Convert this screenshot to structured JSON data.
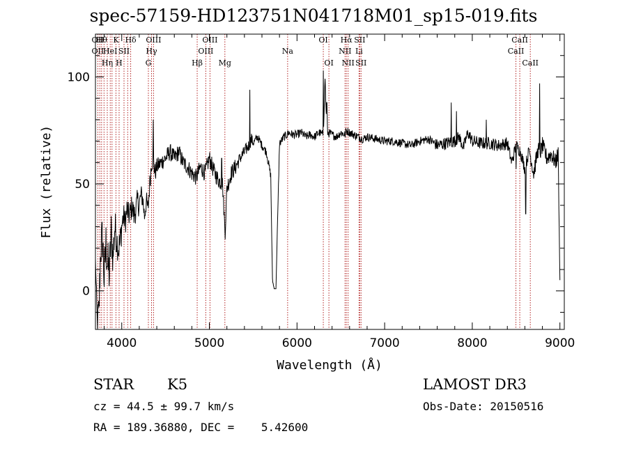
{
  "chart_data": {
    "type": "line",
    "title": "spec-57159-HD123751N041718M01_sp15-019.fits",
    "xlabel": "Wavelength (Å)",
    "ylabel": "Flux (relative)",
    "xlim": [
      3700,
      9050
    ],
    "ylim": [
      -18,
      120
    ],
    "xticks": [
      4000,
      5000,
      6000,
      7000,
      8000,
      9000
    ],
    "xtick_labels": [
      "4000",
      "5000",
      "6000",
      "7000",
      "8000",
      "9000"
    ],
    "yticks": [
      0,
      50,
      100
    ],
    "ytick_labels": [
      "0",
      "50",
      "100"
    ],
    "series": [
      {
        "color": "#000000",
        "x": [
          3700,
          3720,
          3740,
          3760,
          3780,
          3800,
          3820,
          3840,
          3860,
          3880,
          3900,
          3920,
          3940,
          3960,
          3980,
          4000,
          4020,
          4040,
          4060,
          4080,
          4100,
          4120,
          4140,
          4160,
          4180,
          4200,
          4220,
          4240,
          4260,
          4280,
          4300,
          4320,
          4340,
          4360,
          4380,
          4400,
          4450,
          4500,
          4550,
          4600,
          4650,
          4700,
          4750,
          4800,
          4850,
          4900,
          4950,
          5000,
          5050,
          5100,
          5150,
          5180,
          5200,
          5250,
          5300,
          5350,
          5400,
          5450,
          5480,
          5500,
          5550,
          5600,
          5650,
          5700,
          5720,
          5740,
          5760,
          5780,
          5800,
          5820,
          5850,
          5890,
          5900,
          5950,
          6000,
          6050,
          6100,
          6150,
          6200,
          6250,
          6300,
          6320,
          6330,
          6350,
          6400,
          6450,
          6500,
          6550,
          6560,
          6600,
          6650,
          6700,
          6750,
          6800,
          6900,
          7000,
          7100,
          7200,
          7300,
          7400,
          7500,
          7600,
          7700,
          7800,
          7850,
          7900,
          7950,
          8000,
          8100,
          8200,
          8300,
          8400,
          8450,
          8500,
          8550,
          8600,
          8650,
          8700,
          8750,
          8780,
          8800,
          8850,
          8900,
          8950,
          8980,
          9000
        ],
        "y": [
          15,
          -15,
          -10,
          20,
          25,
          5,
          22,
          12,
          8,
          28,
          15,
          30,
          25,
          20,
          22,
          30,
          35,
          32,
          38,
          35,
          37,
          40,
          35,
          38,
          42,
          40,
          45,
          43,
          35,
          42,
          38,
          50,
          60,
          62,
          55,
          58,
          60,
          62,
          65,
          62,
          65,
          60,
          58,
          55,
          53,
          58,
          55,
          62,
          56,
          52,
          50,
          27,
          48,
          55,
          58,
          62,
          65,
          68,
          71,
          69,
          72,
          68,
          65,
          54,
          5,
          1,
          1,
          35,
          69,
          70,
          72,
          73,
          74,
          73,
          73,
          74,
          72,
          73,
          72,
          74,
          73,
          100,
          86,
          74,
          73,
          72,
          74,
          73,
          75,
          74,
          73,
          72,
          71,
          72,
          71,
          70,
          70,
          69,
          68,
          70,
          71,
          68,
          69,
          70,
          72,
          67,
          74,
          70,
          69,
          69,
          68,
          69,
          60,
          68,
          65,
          57,
          66,
          55,
          66,
          65,
          68,
          62,
          64,
          60,
          64,
          5
        ],
        "noise": [
          0,
          8,
          10,
          12,
          12,
          12,
          12,
          12,
          12,
          10,
          10,
          10,
          8,
          8,
          8,
          8,
          6,
          6,
          6,
          6,
          6,
          6,
          6,
          6,
          6,
          6,
          5,
          5,
          5,
          5,
          5,
          5,
          5,
          5,
          5,
          4,
          4,
          4,
          4,
          4,
          4,
          4,
          4,
          4,
          4,
          4,
          4,
          4,
          4,
          4,
          4,
          3,
          4,
          4,
          4,
          3,
          3,
          3,
          3,
          2,
          2,
          2,
          2,
          2,
          1,
          0,
          0,
          2,
          2,
          2,
          2,
          2,
          2,
          2,
          2,
          2,
          2,
          2,
          2,
          2,
          2,
          2,
          2,
          2,
          2,
          2,
          2,
          2,
          2,
          2,
          2,
          2,
          2,
          2,
          2,
          2,
          2,
          2,
          2,
          2,
          2,
          3,
          3,
          3,
          3,
          3,
          3,
          3,
          3,
          3,
          3,
          3,
          3,
          3,
          3,
          3,
          3,
          4,
          4,
          4,
          4,
          4,
          4,
          4,
          4,
          0
        ]
      }
    ],
    "spikes": [
      {
        "x": 4360,
        "y": 80
      },
      {
        "x": 5140,
        "y": 62
      },
      {
        "x": 5460,
        "y": 94
      },
      {
        "x": 6300,
        "y": 103
      },
      {
        "x": 6340,
        "y": 88
      },
      {
        "x": 7760,
        "y": 88
      },
      {
        "x": 7820,
        "y": 84
      },
      {
        "x": 8160,
        "y": 80
      },
      {
        "x": 8500,
        "y": 57
      },
      {
        "x": 8610,
        "y": 36
      },
      {
        "x": 8770,
        "y": 97
      },
      {
        "x": 9000,
        "y": 11
      }
    ],
    "lines": [
      {
        "x": 3727,
        "rows": [
          "OII",
          "OII"
        ]
      },
      {
        "x": 3750,
        "rows": [
          "",
          "",
          ""
        ]
      },
      {
        "x": 3770,
        "rows": [
          "Hθ",
          "",
          ""
        ]
      },
      {
        "x": 3798,
        "rows": [
          "",
          "",
          ""
        ]
      },
      {
        "x": 3835,
        "rows": [
          "",
          "",
          "Hη"
        ]
      },
      {
        "x": 3869,
        "rows": [
          "",
          "HeI",
          ""
        ]
      },
      {
        "x": 3889,
        "rows": [
          "",
          "",
          ""
        ]
      },
      {
        "x": 3934,
        "rows": [
          "K",
          "",
          ""
        ]
      },
      {
        "x": 3970,
        "rows": [
          "",
          "",
          "H"
        ]
      },
      {
        "x": 4026,
        "rows": [
          "",
          "SII",
          ""
        ]
      },
      {
        "x": 4068,
        "rows": [
          "",
          "",
          ""
        ]
      },
      {
        "x": 4102,
        "rows": [
          "Hδ",
          "",
          ""
        ]
      },
      {
        "x": 4304,
        "rows": [
          "",
          "",
          "G"
        ]
      },
      {
        "x": 4340,
        "rows": [
          "",
          "Hγ",
          ""
        ]
      },
      {
        "x": 4363,
        "rows": [
          "OIII",
          "",
          ""
        ]
      },
      {
        "x": 4861,
        "rows": [
          "",
          "",
          "Hβ"
        ]
      },
      {
        "x": 4959,
        "rows": [
          "",
          "OIII",
          ""
        ]
      },
      {
        "x": 5007,
        "rows": [
          "OIII",
          "",
          ""
        ]
      },
      {
        "x": 5177,
        "rows": [
          "",
          "",
          "Mg"
        ]
      },
      {
        "x": 5893,
        "rows": [
          "",
          "Na",
          ""
        ]
      },
      {
        "x": 6300,
        "rows": [
          "OI",
          "",
          ""
        ]
      },
      {
        "x": 6364,
        "rows": [
          "",
          "",
          "OI"
        ]
      },
      {
        "x": 6548,
        "rows": [
          "",
          "NII",
          ""
        ]
      },
      {
        "x": 6563,
        "rows": [
          "Hα",
          "",
          ""
        ]
      },
      {
        "x": 6583,
        "rows": [
          "",
          "",
          "NII"
        ]
      },
      {
        "x": 6708,
        "rows": [
          "",
          "Li",
          ""
        ]
      },
      {
        "x": 6716,
        "rows": [
          "SII",
          "",
          ""
        ]
      },
      {
        "x": 6731,
        "rows": [
          "",
          "",
          "SII"
        ]
      },
      {
        "x": 8498,
        "rows": [
          "",
          "CaII",
          ""
        ]
      },
      {
        "x": 8542,
        "rows": [
          "CaII",
          "",
          ""
        ]
      },
      {
        "x": 8662,
        "rows": [
          "",
          "",
          "CaII"
        ]
      }
    ],
    "line_color": "#b22222",
    "grid": false
  },
  "info": {
    "class": "STAR",
    "subclass": "K5",
    "survey": "LAMOST DR3",
    "cz": "cz = 44.5 ± 99.7 km/s",
    "obs_date": "Obs-Date: 20150516",
    "radec": "RA = 189.36880, DEC =    5.42600"
  }
}
